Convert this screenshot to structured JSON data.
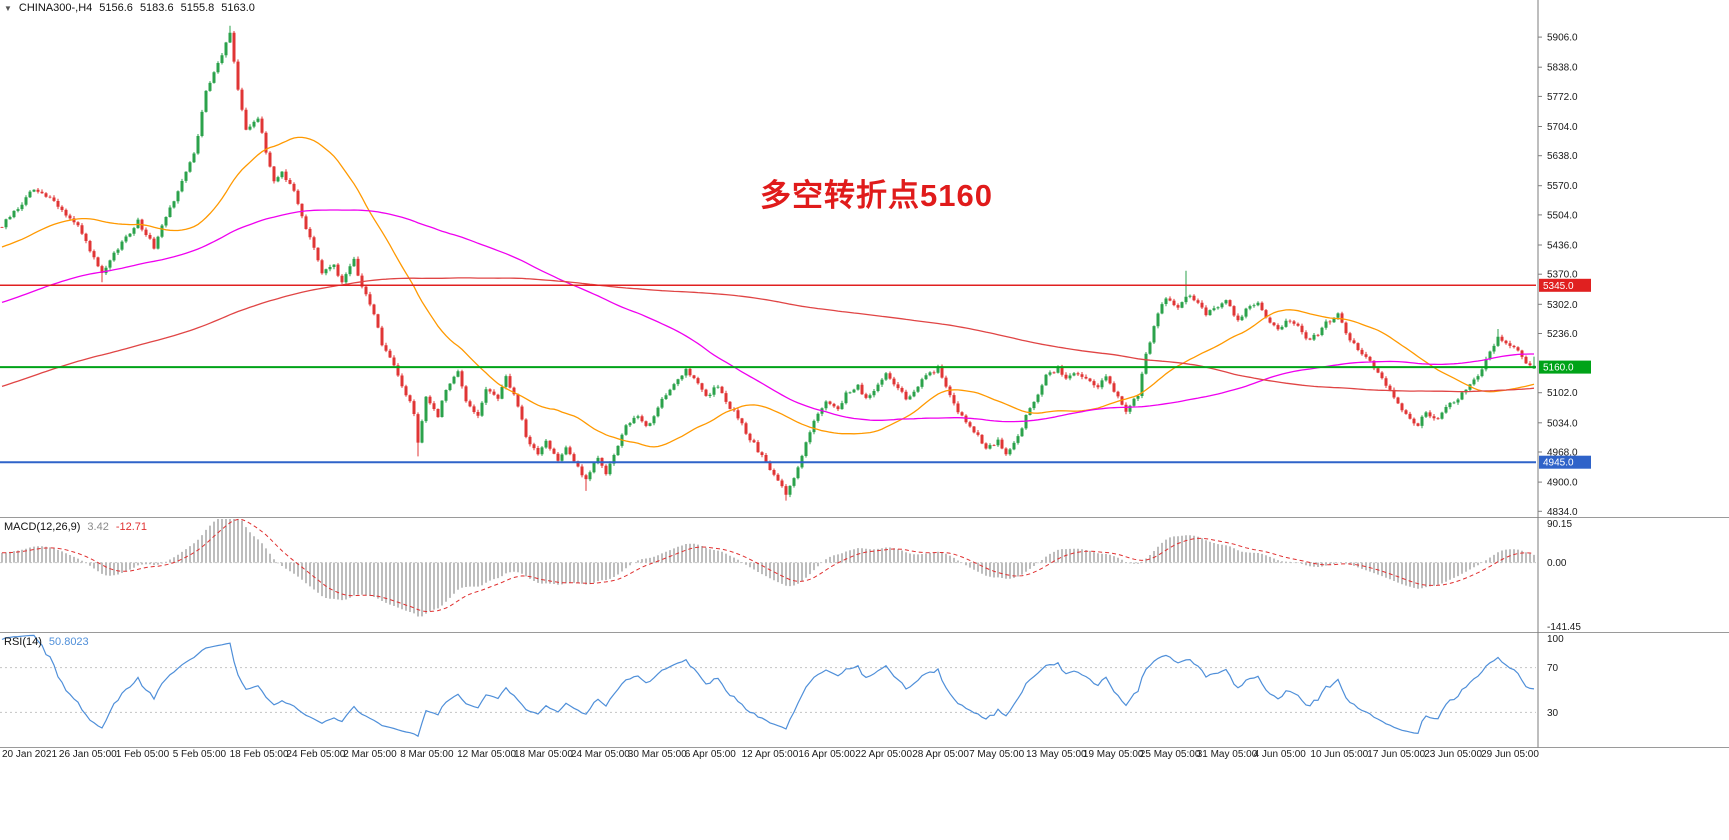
{
  "window": {
    "title": "CHINA300-,H4",
    "bg_color": "#ffffff"
  },
  "header": {
    "symbol_period": "CHINA300-,H4",
    "open": "5156.6",
    "high": "5183.6",
    "low": "5155.8",
    "close": "5163.0"
  },
  "annotation": {
    "text": "多空转折点5160",
    "color": "#e01b1b"
  },
  "price_axis": {
    "labels": [
      "5906.0",
      "5838.0",
      "5772.0",
      "5704.0",
      "5638.0",
      "5570.0",
      "5504.0",
      "5436.0",
      "5370.0",
      "5302.0",
      "5236.0",
      "5102.0",
      "5034.0",
      "4968.0",
      "4900.0",
      "4834.0"
    ]
  },
  "hlines": [
    {
      "value": 5345.0,
      "label": "5345.0",
      "color": "#e02020",
      "width": 1.5
    },
    {
      "value": 5160.0,
      "label": "5160.0",
      "color": "#00a318",
      "width": 2
    },
    {
      "value": 4945.0,
      "label": "4945.0",
      "color": "#2f63c9",
      "width": 2
    }
  ],
  "macd": {
    "label": "MACD(12,26,9)",
    "value_main": "3.42",
    "value_signal": "-12.71",
    "axis_labels": [
      "90.15",
      "0.00",
      "-141.45"
    ],
    "ymax": 90.15,
    "ymin": -141.45,
    "fast": 12,
    "slow": 26,
    "signal": 9
  },
  "rsi": {
    "label": "RSI(14)",
    "value": "50.8023",
    "axis_labels": [
      "100",
      "70",
      "30"
    ],
    "levels": [
      70,
      30
    ],
    "period": 14
  },
  "time_axis": {
    "labels": [
      "20 Jan 2021",
      "26 Jan 05:00",
      "1 Feb 05:00",
      "5 Feb 05:00",
      "18 Feb 05:00",
      "24 Feb 05:00",
      "2 Mar 05:00",
      "8 Mar 05:00",
      "12 Mar 05:00",
      "18 Mar 05:00",
      "24 Mar 05:00",
      "30 Mar 05:00",
      "6 Apr 05:00",
      "12 Apr 05:00",
      "16 Apr 05:00",
      "22 Apr 05:00",
      "28 Apr 05:00",
      "7 May 05:00",
      "13 May 05:00",
      "19 May 05:00",
      "25 May 05:00",
      "31 May 05:00",
      "4 Jun 05:00",
      "10 Jun 05:00",
      "17 Jun 05:00",
      "23 Jun 05:00",
      "29 Jun 05:00"
    ]
  },
  "colors": {
    "candle_up": "#2ba24b",
    "candle_down": "#e03535",
    "macd_hist": "#bdbdbd",
    "macd_signal": "#e03030",
    "rsi_line": "#4f8fd9",
    "axis_text": "#1a1a1a",
    "separator": "#9a9a9a",
    "axis_line": "#7d7d7d",
    "grid_dotted": "#c4c4c4",
    "tag_text": "#ffffff"
  },
  "chart_data": {
    "type": "candlestick",
    "title": "CHINA300- H4 candlestick chart with MACD and RSI",
    "symbol": "CHINA300-",
    "timeframe": "H4",
    "ylim": [
      4821,
      5990
    ],
    "candle_count": 384,
    "noise_amplitude": 5,
    "seed": 42,
    "preroll": {
      "count": 250,
      "start_price": 4750
    },
    "current_ohlc": {
      "open": 5156.6,
      "high": 5183.6,
      "low": 5155.8,
      "close": 5163.0
    },
    "price_anchors": [
      [
        0,
        5480
      ],
      [
        4,
        5520
      ],
      [
        8,
        5565
      ],
      [
        12,
        5540
      ],
      [
        19,
        5478
      ],
      [
        25,
        5368
      ],
      [
        29,
        5430
      ],
      [
        34,
        5490
      ],
      [
        38,
        5432
      ],
      [
        40,
        5478
      ],
      [
        44,
        5560
      ],
      [
        48,
        5640
      ],
      [
        51,
        5780
      ],
      [
        55,
        5868
      ],
      [
        57,
        5915
      ],
      [
        59,
        5790
      ],
      [
        61,
        5700
      ],
      [
        64,
        5722
      ],
      [
        66,
        5648
      ],
      [
        68,
        5580
      ],
      [
        70,
        5602
      ],
      [
        73,
        5558
      ],
      [
        75,
        5500
      ],
      [
        78,
        5432
      ],
      [
        80,
        5372
      ],
      [
        83,
        5392
      ],
      [
        85,
        5350
      ],
      [
        88,
        5400
      ],
      [
        90,
        5342
      ],
      [
        93,
        5282
      ],
      [
        95,
        5212
      ],
      [
        98,
        5162
      ],
      [
        100,
        5118
      ],
      [
        103,
        5058
      ],
      [
        104,
        4990
      ],
      [
        106,
        5088
      ],
      [
        109,
        5052
      ],
      [
        111,
        5108
      ],
      [
        114,
        5148
      ],
      [
        116,
        5082
      ],
      [
        119,
        5052
      ],
      [
        121,
        5108
      ],
      [
        124,
        5092
      ],
      [
        126,
        5138
      ],
      [
        129,
        5072
      ],
      [
        131,
        5002
      ],
      [
        134,
        4962
      ],
      [
        136,
        4992
      ],
      [
        139,
        4952
      ],
      [
        141,
        4982
      ],
      [
        144,
        4932
      ],
      [
        146,
        4902
      ],
      [
        149,
        4958
      ],
      [
        151,
        4922
      ],
      [
        154,
        4978
      ],
      [
        156,
        5028
      ],
      [
        159,
        5048
      ],
      [
        161,
        5022
      ],
      [
        164,
        5068
      ],
      [
        166,
        5098
      ],
      [
        169,
        5128
      ],
      [
        171,
        5152
      ],
      [
        174,
        5128
      ],
      [
        176,
        5092
      ],
      [
        179,
        5118
      ],
      [
        181,
        5078
      ],
      [
        184,
        5048
      ],
      [
        186,
        5012
      ],
      [
        189,
        4972
      ],
      [
        191,
        4942
      ],
      [
        194,
        4902
      ],
      [
        196,
        4872
      ],
      [
        199,
        4932
      ],
      [
        201,
        4988
      ],
      [
        204,
        5058
      ],
      [
        206,
        5078
      ],
      [
        209,
        5062
      ],
      [
        211,
        5098
      ],
      [
        214,
        5118
      ],
      [
        216,
        5088
      ],
      [
        219,
        5118
      ],
      [
        221,
        5148
      ],
      [
        224,
        5112
      ],
      [
        226,
        5088
      ],
      [
        229,
        5118
      ],
      [
        231,
        5138
      ],
      [
        234,
        5158
      ],
      [
        236,
        5112
      ],
      [
        239,
        5062
      ],
      [
        241,
        5032
      ],
      [
        244,
        5002
      ],
      [
        246,
        4972
      ],
      [
        249,
        4992
      ],
      [
        251,
        4962
      ],
      [
        254,
        5002
      ],
      [
        256,
        5048
      ],
      [
        259,
        5098
      ],
      [
        261,
        5138
      ],
      [
        264,
        5158
      ],
      [
        266,
        5132
      ],
      [
        269,
        5148
      ],
      [
        271,
        5132
      ],
      [
        274,
        5112
      ],
      [
        276,
        5138
      ],
      [
        279,
        5092
      ],
      [
        281,
        5062
      ],
      [
        284,
        5098
      ],
      [
        286,
        5188
      ],
      [
        289,
        5278
      ],
      [
        291,
        5318
      ],
      [
        294,
        5298
      ],
      [
        296,
        5322
      ],
      [
        299,
        5308
      ],
      [
        301,
        5282
      ],
      [
        304,
        5298
      ],
      [
        306,
        5312
      ],
      [
        309,
        5262
      ],
      [
        311,
        5288
      ],
      [
        314,
        5308
      ],
      [
        316,
        5272
      ],
      [
        319,
        5242
      ],
      [
        321,
        5268
      ],
      [
        324,
        5252
      ],
      [
        326,
        5222
      ],
      [
        329,
        5232
      ],
      [
        331,
        5258
      ],
      [
        334,
        5282
      ],
      [
        336,
        5232
      ],
      [
        339,
        5202
      ],
      [
        341,
        5182
      ],
      [
        344,
        5152
      ],
      [
        346,
        5122
      ],
      [
        349,
        5082
      ],
      [
        351,
        5052
      ],
      [
        354,
        5028
      ],
      [
        356,
        5058
      ],
      [
        359,
        5042
      ],
      [
        361,
        5068
      ],
      [
        364,
        5088
      ],
      [
        366,
        5112
      ],
      [
        369,
        5138
      ],
      [
        371,
        5178
      ],
      [
        374,
        5228
      ],
      [
        376,
        5218
      ],
      [
        379,
        5198
      ],
      [
        381,
        5172
      ],
      [
        383,
        5163
      ]
    ],
    "wick_events": [
      {
        "i": 25,
        "low": 5352
      },
      {
        "i": 57,
        "high": 5932
      },
      {
        "i": 104,
        "low": 4958
      },
      {
        "i": 146,
        "low": 4880
      },
      {
        "i": 196,
        "low": 4858
      },
      {
        "i": 296,
        "high": 5378
      },
      {
        "i": 374,
        "high": 5246
      }
    ],
    "last_candle": {
      "open": 5156.6,
      "high": 5183.6,
      "low": 5155.8,
      "close": 5163.0
    },
    "moving_averages": [
      {
        "period": 34,
        "color": "#ff9900"
      },
      {
        "period": 120,
        "color": "#ef00ef"
      },
      {
        "period": 250,
        "color": "#e04545"
      }
    ]
  }
}
